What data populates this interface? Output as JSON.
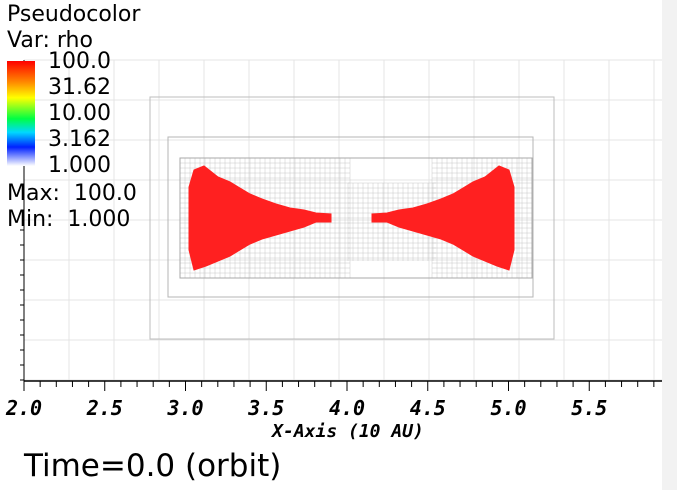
{
  "plot": {
    "title": "Pseudocolor",
    "variable": "Var: rho",
    "colorbar_ticks": [
      "100.0",
      "31.62",
      "10.00",
      "3.162",
      "1.000"
    ],
    "max": "Max:  100.0",
    "min": "Min:  1.000",
    "xlabel": "X-Axis (10 AU)",
    "time": "Time=0.0 (orbit)",
    "fill_color": "#ff2020",
    "colormap": [
      "#ff0000",
      "#ff8800",
      "#ffff00",
      "#00ff44",
      "#00d8ff",
      "#0022ff",
      "#ffffff"
    ]
  },
  "chart_data": {
    "type": "heatmap",
    "xlabel": "X-Axis (10 AU)",
    "xlim": [
      2.0,
      6.0
    ],
    "x_ticks": [
      2.0,
      2.5,
      3.0,
      3.5,
      4.0,
      4.5,
      5.0,
      5.5
    ],
    "x_tick_labels": [
      "2.0",
      "2.5",
      "3.0",
      "3.5",
      "4.0",
      "4.5",
      "5.0",
      "5.5"
    ],
    "color_scale": "log",
    "color_range": [
      1.0,
      100.0
    ],
    "color_ticks": [
      "100.0",
      "31.62",
      "10.00",
      "3.162",
      "1.000"
    ],
    "grid": true,
    "max": 100.0,
    "min": 1.0
  }
}
